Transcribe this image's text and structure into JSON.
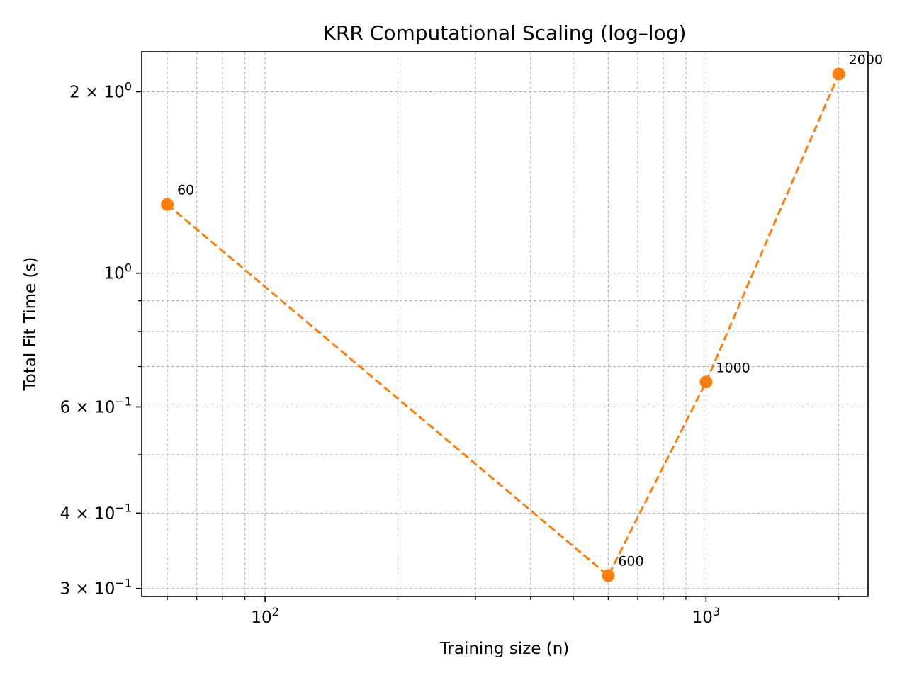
{
  "chart_data": {
    "type": "line",
    "title": "KRR Computational Scaling (log–log)",
    "xlabel": "Training size (n)",
    "ylabel": "Total Fit Time (s)",
    "xscale": "log",
    "yscale": "log",
    "xlim": [
      52.5,
      2330
    ],
    "ylim": [
      0.291,
      2.33
    ],
    "grid": true,
    "line_style": "dashed",
    "marker": "circle",
    "color": "#ff7f0e",
    "series": [
      {
        "x": [
          60,
          600,
          1000,
          2000
        ],
        "y": [
          1.3,
          0.315,
          0.66,
          2.14
        ],
        "point_labels": [
          "60",
          "600",
          "1000",
          "2000"
        ]
      }
    ],
    "x_ticks": [
      {
        "value": 100,
        "mantissa": "",
        "base": "10",
        "exp": "2"
      },
      {
        "value": 1000,
        "mantissa": "",
        "base": "10",
        "exp": "3"
      }
    ],
    "y_ticks": [
      {
        "value": 0.3,
        "mantissa": "3 × ",
        "base": "10",
        "exp": "−1"
      },
      {
        "value": 0.4,
        "mantissa": "4 × ",
        "base": "10",
        "exp": "−1"
      },
      {
        "value": 0.6,
        "mantissa": "6 × ",
        "base": "10",
        "exp": "−1"
      },
      {
        "value": 1,
        "mantissa": "",
        "base": "10",
        "exp": "0"
      },
      {
        "value": 2,
        "mantissa": "2 × ",
        "base": "10",
        "exp": "0"
      }
    ],
    "x_minor_ticks": [
      60,
      70,
      80,
      90,
      200,
      300,
      400,
      500,
      600,
      700,
      800,
      900,
      2000
    ],
    "y_minor_ticks": [
      0.5,
      0.7,
      0.8,
      0.9
    ]
  }
}
